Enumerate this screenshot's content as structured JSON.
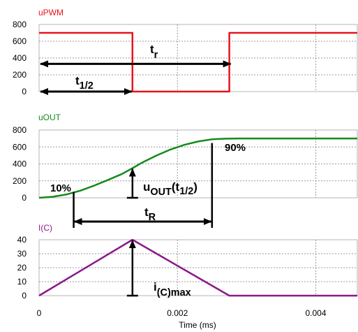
{
  "chart_data": [
    {
      "type": "line",
      "title": "uPWM",
      "title_color": "#e8141c",
      "line_color": "#e8141c",
      "xlim": [
        0,
        0.0046
      ],
      "ylim": [
        0,
        800
      ],
      "yticks": [
        0,
        200,
        400,
        600,
        800
      ],
      "grid": true,
      "x_ms": [
        0,
        0.00135,
        0.00135,
        0.00275,
        0.00275,
        0.0046
      ],
      "y": [
        700,
        700,
        0,
        0,
        700,
        700
      ],
      "annotations": [
        {
          "label": "t",
          "sub": "r",
          "kind": "double-arrow",
          "from_x": 0,
          "to_x": 0.00275,
          "at_y": 330
        },
        {
          "label": "t",
          "sub": "1/2",
          "kind": "double-arrow",
          "from_x": 0,
          "to_x": 0.00135,
          "at_y": 0
        }
      ]
    },
    {
      "type": "line",
      "title": "uOUT",
      "title_color": "#16891c",
      "line_color": "#16891c",
      "xlim": [
        0,
        0.0046
      ],
      "ylim": [
        0,
        800
      ],
      "yticks": [
        0,
        200,
        400,
        600,
        800
      ],
      "grid": true,
      "x_ms": [
        0,
        0.0002,
        0.0004,
        0.0006,
        0.0008,
        0.001,
        0.0012,
        0.00135,
        0.0015,
        0.0017,
        0.0019,
        0.0021,
        0.0023,
        0.0025,
        0.0027,
        0.0029,
        0.0046
      ],
      "y": [
        0,
        12,
        40,
        85,
        145,
        212,
        282,
        350,
        420,
        500,
        570,
        625,
        665,
        690,
        698,
        700,
        700
      ],
      "annotations": [
        {
          "label": "10%",
          "x": 0.0005,
          "y": 70
        },
        {
          "label": "90%",
          "x": 0.0025,
          "y": 630
        },
        {
          "label": "u",
          "sub": "OUT",
          "tail": "(t",
          "tail_sub": "1/2",
          "tail_end": ")",
          "kind": "arrow",
          "x": 0.00135,
          "from_y": 0,
          "to_y": 350
        },
        {
          "label": "t",
          "sub": "R",
          "kind": "double-arrow",
          "from_x": 0.0005,
          "to_x": 0.0025
        }
      ]
    },
    {
      "type": "line",
      "title": "I(C)",
      "title_color": "#8a1a8a",
      "line_color": "#8a1a8a",
      "xlim": [
        0,
        0.0046
      ],
      "ylim": [
        0,
        40
      ],
      "yticks": [
        0,
        10,
        20,
        30,
        40
      ],
      "grid": true,
      "xticks": [
        0,
        0.002,
        0.004
      ],
      "xtick_labels": [
        "0",
        "0.002",
        "0.004"
      ],
      "xlabel": "Time (ms)",
      "x_ms": [
        0,
        0.00135,
        0.00275,
        0.0046
      ],
      "y": [
        0,
        40,
        0,
        0
      ],
      "annotations": [
        {
          "label": "i",
          "sub": "(C)max",
          "kind": "arrow",
          "x": 0.00135,
          "from_y": 0,
          "to_y": 40
        }
      ]
    }
  ]
}
